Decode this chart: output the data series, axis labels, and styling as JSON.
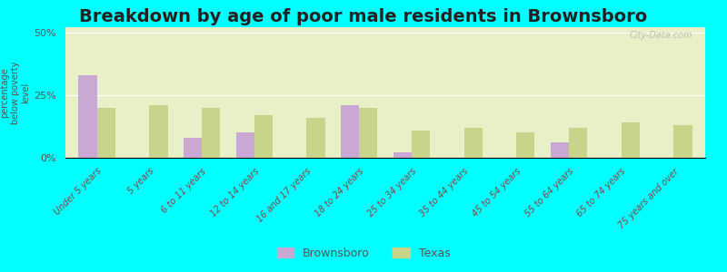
{
  "title": "Breakdown by age of poor male residents in Brownsboro",
  "categories": [
    "Under 5 years",
    "5 years",
    "6 to 11 years",
    "12 to 14 years",
    "16 and 17 years",
    "18 to 24 years",
    "25 to 34 years",
    "35 to 44 years",
    "45 to 54 years",
    "55 to 64 years",
    "65 to 74 years",
    "75 years and over"
  ],
  "brownsboro_values": [
    33,
    0,
    8,
    10,
    0,
    21,
    2,
    0,
    0,
    6,
    0,
    0
  ],
  "texas_values": [
    20,
    21,
    20,
    17,
    16,
    20,
    11,
    12,
    10,
    12,
    14,
    13
  ],
  "brownsboro_color": "#c9a8d4",
  "texas_color": "#c8d48a",
  "ylabel": "percentage\nbelow poverty\nlevel",
  "ylim": [
    0,
    52
  ],
  "yticks": [
    0,
    25,
    50
  ],
  "ytick_labels": [
    "0%",
    "25%",
    "50%"
  ],
  "background_color": "#e8f0c8",
  "outer_background": "#00ffff",
  "watermark": "City-Data.com",
  "legend_brownsboro": "Brownsboro",
  "legend_texas": "Texas",
  "title_fontsize": 14,
  "bar_width": 0.35
}
